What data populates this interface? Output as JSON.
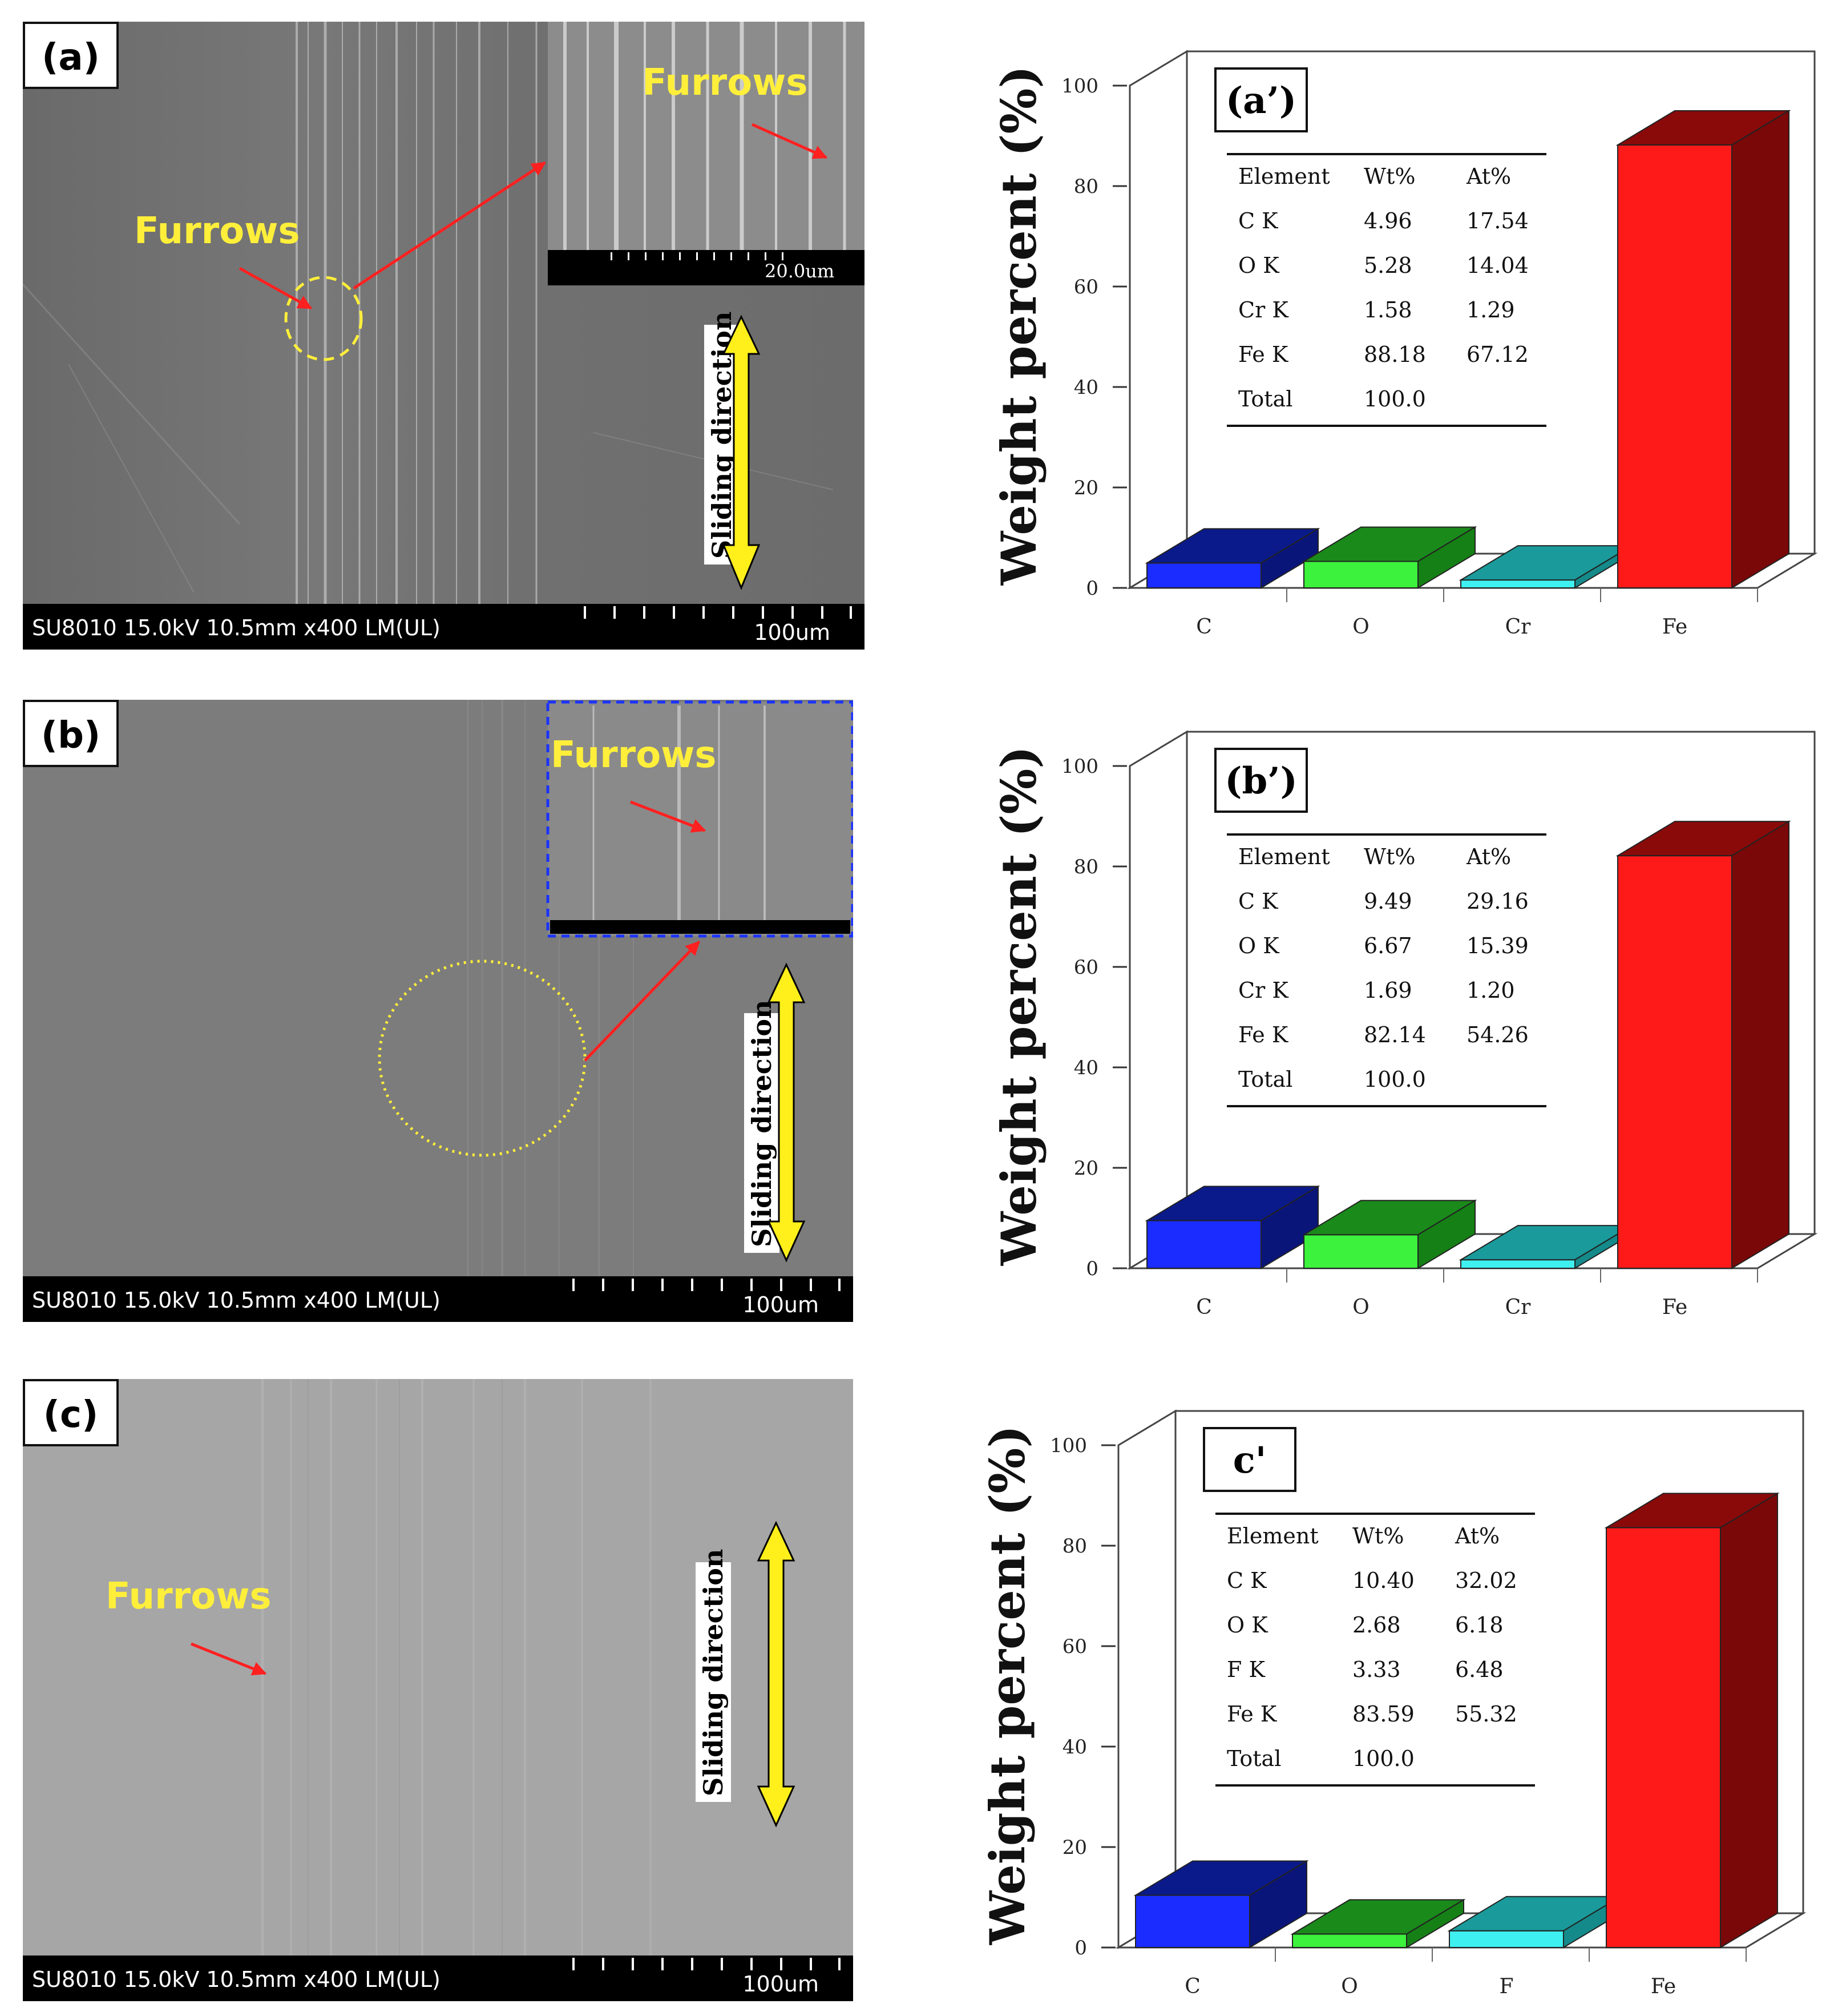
{
  "sem_panels": [
    {
      "label": "(a)",
      "info_text": "SU8010 15.0kV 10.5mm x400 LM(UL)",
      "scale_text": "100um",
      "furrows_main": "Furrows",
      "furrows_inset": "Furrows",
      "inset_scale_text": "20.0um",
      "sliding_text": "Sliding direction",
      "colors": {
        "bg": "#6e6e6e"
      }
    },
    {
      "label": "(b)",
      "info_text": "SU8010 15.0kV 10.5mm x400 LM(UL)",
      "scale_text": "100um",
      "furrows_inset": "Furrows",
      "sliding_text": "Sliding direction",
      "colors": {
        "bg": "#7c7c7c"
      }
    },
    {
      "label": "(c)",
      "info_text": "SU8010 15.0kV 10.5mm x400 LM(UL)",
      "scale_text": "100um",
      "furrows_main": "Furrows",
      "sliding_text": "Sliding direction",
      "colors": {
        "bg": "#a6a6a6"
      }
    }
  ],
  "chart_data": [
    {
      "type": "bar",
      "panel_label": "(a’)",
      "ylabel": "Weight percent (%)",
      "categories": [
        "C",
        "O",
        "Cr",
        "Fe"
      ],
      "values": [
        4.96,
        5.28,
        1.58,
        88.18
      ],
      "ylim": [
        0,
        100
      ],
      "yticks": [
        "0",
        "20",
        "40",
        "60",
        "80",
        "100"
      ],
      "table": {
        "headers": [
          "Element",
          "Wt%",
          "At%"
        ],
        "rows": [
          [
            "C K",
            "4.96",
            "17.54"
          ],
          [
            "O K",
            "5.28",
            "14.04"
          ],
          [
            "Cr K",
            "1.58",
            "1.29"
          ],
          [
            "Fe K",
            "88.18",
            "67.12"
          ],
          [
            "Total",
            "100.0",
            ""
          ]
        ]
      }
    },
    {
      "type": "bar",
      "panel_label": "(b’)",
      "ylabel": "Weight percent (%)",
      "categories": [
        "C",
        "O",
        "Cr",
        "Fe"
      ],
      "values": [
        9.49,
        6.67,
        1.69,
        82.14
      ],
      "ylim": [
        0,
        100
      ],
      "yticks": [
        "0",
        "20",
        "40",
        "60",
        "80",
        "100"
      ],
      "table": {
        "headers": [
          "Element",
          "Wt%",
          "At%"
        ],
        "rows": [
          [
            "C K",
            "9.49",
            "29.16"
          ],
          [
            "O K",
            "6.67",
            "15.39"
          ],
          [
            "Cr K",
            "1.69",
            "1.20"
          ],
          [
            "Fe K",
            "82.14",
            "54.26"
          ],
          [
            "Total",
            "100.0",
            ""
          ]
        ]
      }
    },
    {
      "type": "bar",
      "panel_label": "c'",
      "ylabel": "Weight percent (%)",
      "categories": [
        "C",
        "O",
        "F",
        "Fe"
      ],
      "values": [
        10.4,
        2.68,
        3.33,
        83.59
      ],
      "ylim": [
        0,
        100
      ],
      "yticks": [
        "0",
        "20",
        "40",
        "60",
        "80",
        "100"
      ],
      "table": {
        "headers": [
          "Element",
          "Wt%",
          "At%"
        ],
        "rows": [
          [
            "C K",
            "10.40",
            "32.02"
          ],
          [
            "O K",
            "2.68",
            "6.18"
          ],
          [
            "F K",
            "3.33",
            "6.48"
          ],
          [
            "Fe K",
            "83.59",
            "55.32"
          ],
          [
            "Total",
            "100.0",
            ""
          ]
        ]
      }
    }
  ],
  "bar_colors": [
    {
      "front": "#1a2cff",
      "top": "#0a1a8a",
      "side": "#0a157a"
    },
    {
      "front": "#3cf23c",
      "top": "#1a8a1a",
      "side": "#158015"
    },
    {
      "front": "#3ff0f0",
      "top": "#1a9a9a",
      "side": "#158a8a"
    },
    {
      "front": "#ff1a1a",
      "top": "#8a0a0a",
      "side": "#7a0808"
    }
  ]
}
